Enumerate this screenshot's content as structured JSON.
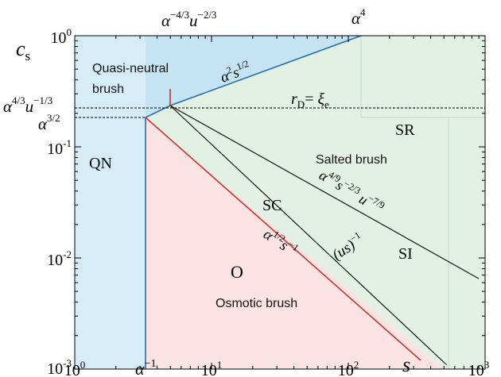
{
  "chart_data": {
    "type": "diagram",
    "xlabel": "s",
    "ylabel": "c",
    "ylabel_sub": "s",
    "x_ticks": [
      {
        "base": "10",
        "exp": "0"
      },
      {
        "base": "10",
        "exp": "1"
      },
      {
        "base": "10",
        "exp": "2"
      },
      {
        "base": "10",
        "exp": "3"
      }
    ],
    "y_ticks": [
      {
        "base": "10",
        "exp": "0"
      },
      {
        "base": "10",
        "exp": "-1"
      },
      {
        "base": "10",
        "exp": "-2"
      },
      {
        "base": "10",
        "exp": "-3"
      }
    ],
    "special_ticks": {
      "x_alpha_inv": {
        "base": "α",
        "exp": "−1"
      },
      "top_marker": {
        "a": "α",
        "ae": "−4/3",
        "u": "u",
        "ue": "−2/3"
      },
      "top_corner": {
        "a": "α",
        "ae": "4"
      },
      "y_dash_upper": {
        "a": "α",
        "ae": "4/3",
        "u": "u",
        "ue": "−1/3"
      },
      "y_dash_lower": {
        "a": "α",
        "ae": "3/2"
      }
    },
    "regions": [
      {
        "label": "Quasi-neutral",
        "label2": "brush",
        "color": "#d6edf8"
      },
      {
        "label": "Salted brush",
        "color": "#e3f1e5"
      },
      {
        "label": "Osmotic brush",
        "color": "#fbe3e3"
      }
    ],
    "phase_labels": {
      "qn": "QN",
      "sr": "SR",
      "sc": "SC",
      "si": "SI",
      "o": "O"
    },
    "lines": {
      "top_boundary": {
        "a": "α",
        "ae": "2",
        "s": "s",
        "se": "1/2"
      },
      "osmotic": {
        "a": "α",
        "ae": "1/2",
        "s": "s",
        "se": "−1"
      },
      "us": {
        "text": "(us)",
        "exp": "−1"
      },
      "sc_si": {
        "a": "α",
        "ae": "4/9",
        "s": "s",
        "se": "−2/3",
        "u": "u",
        "ue": "−7/9"
      }
    },
    "debye": {
      "r": "r",
      "rsub": "D",
      "eq": "= ",
      "xi": "ξ",
      "xisub": "e"
    },
    "colors": {
      "blue_line": "#2b6cb0",
      "red_line": "#c0392b",
      "black_line": "#111111",
      "blue_region": "#d6edf8",
      "blue_region_dark": "#c4e4f4",
      "green_region": "#e3f1e5",
      "red_region": "#fbe3e3"
    }
  }
}
